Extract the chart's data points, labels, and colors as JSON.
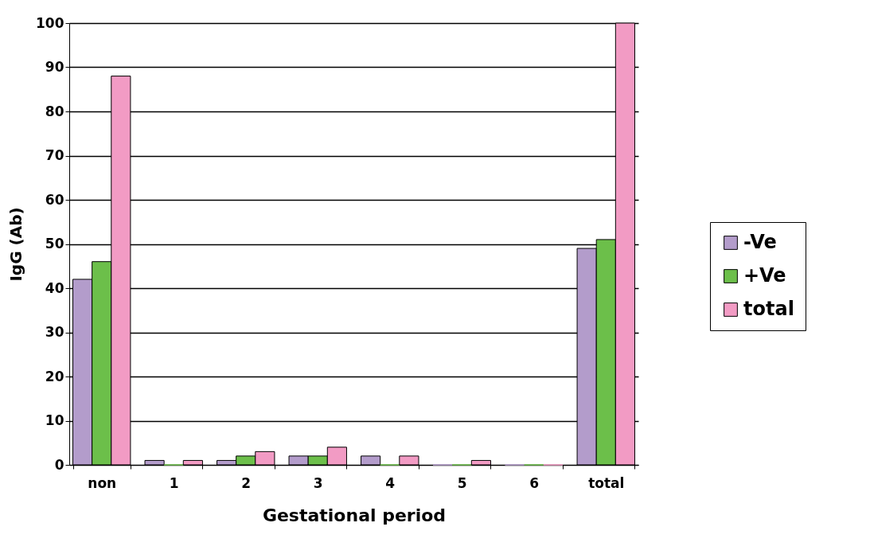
{
  "chart_data": {
    "type": "bar",
    "xlabel": "Gestational period",
    "ylabel": "IgG (Ab)",
    "categories": [
      "non",
      "1",
      "2",
      "3",
      "4",
      "5",
      "6",
      "total"
    ],
    "series": [
      {
        "name": "-Ve",
        "color": "#b39ccb",
        "values": [
          42,
          1,
          1,
          2,
          2,
          0,
          0,
          49
        ]
      },
      {
        "name": "+Ve",
        "color": "#6cbf4a",
        "values": [
          46,
          0,
          2,
          2,
          0,
          0,
          0,
          51
        ]
      },
      {
        "name": "total",
        "color": "#f29bc4",
        "values": [
          88,
          1,
          3,
          4,
          2,
          1,
          0,
          100
        ]
      }
    ],
    "ylim": [
      0,
      100
    ],
    "yticks": [
      0,
      10,
      20,
      30,
      40,
      50,
      60,
      70,
      80,
      90,
      100
    ],
    "grid": "y",
    "legend": "right"
  }
}
